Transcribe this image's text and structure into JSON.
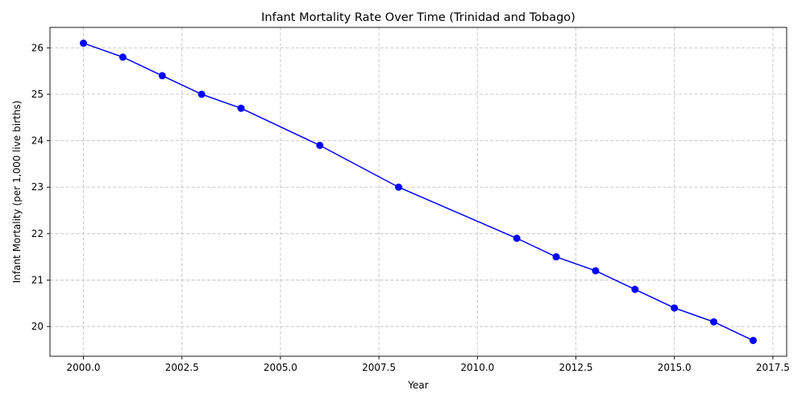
{
  "chart_data": {
    "type": "line",
    "title": "Infant Mortality Rate Over Time (Trinidad and Tobago)",
    "xlabel": "Year",
    "ylabel": "Infant Mortality (per 1,000 live births)",
    "xlim": [
      1999.15,
      2017.85
    ],
    "ylim": [
      19.36,
      26.44
    ],
    "xticks": [
      2000,
      2002.5,
      2005,
      2007.5,
      2010,
      2012.5,
      2015,
      2017.5
    ],
    "xtick_labels": [
      "2000.0",
      "2002.5",
      "2005.0",
      "2007.5",
      "2010.0",
      "2012.5",
      "2015.0",
      "2017.5"
    ],
    "yticks": [
      20,
      21,
      22,
      23,
      24,
      25,
      26
    ],
    "ytick_labels": [
      "20",
      "21",
      "22",
      "23",
      "24",
      "25",
      "26"
    ],
    "grid": true,
    "series": [
      {
        "color": "#0000ff",
        "marker": "circle",
        "x": [
          2000,
          2001,
          2002,
          2003,
          2004,
          2006,
          2008,
          2011,
          2012,
          2013,
          2014,
          2015,
          2016,
          2017
        ],
        "y": [
          26.1,
          25.8,
          25.4,
          25.0,
          24.7,
          23.9,
          23.0,
          21.9,
          21.5,
          21.2,
          20.8,
          20.4,
          20.1,
          19.7
        ]
      }
    ]
  }
}
